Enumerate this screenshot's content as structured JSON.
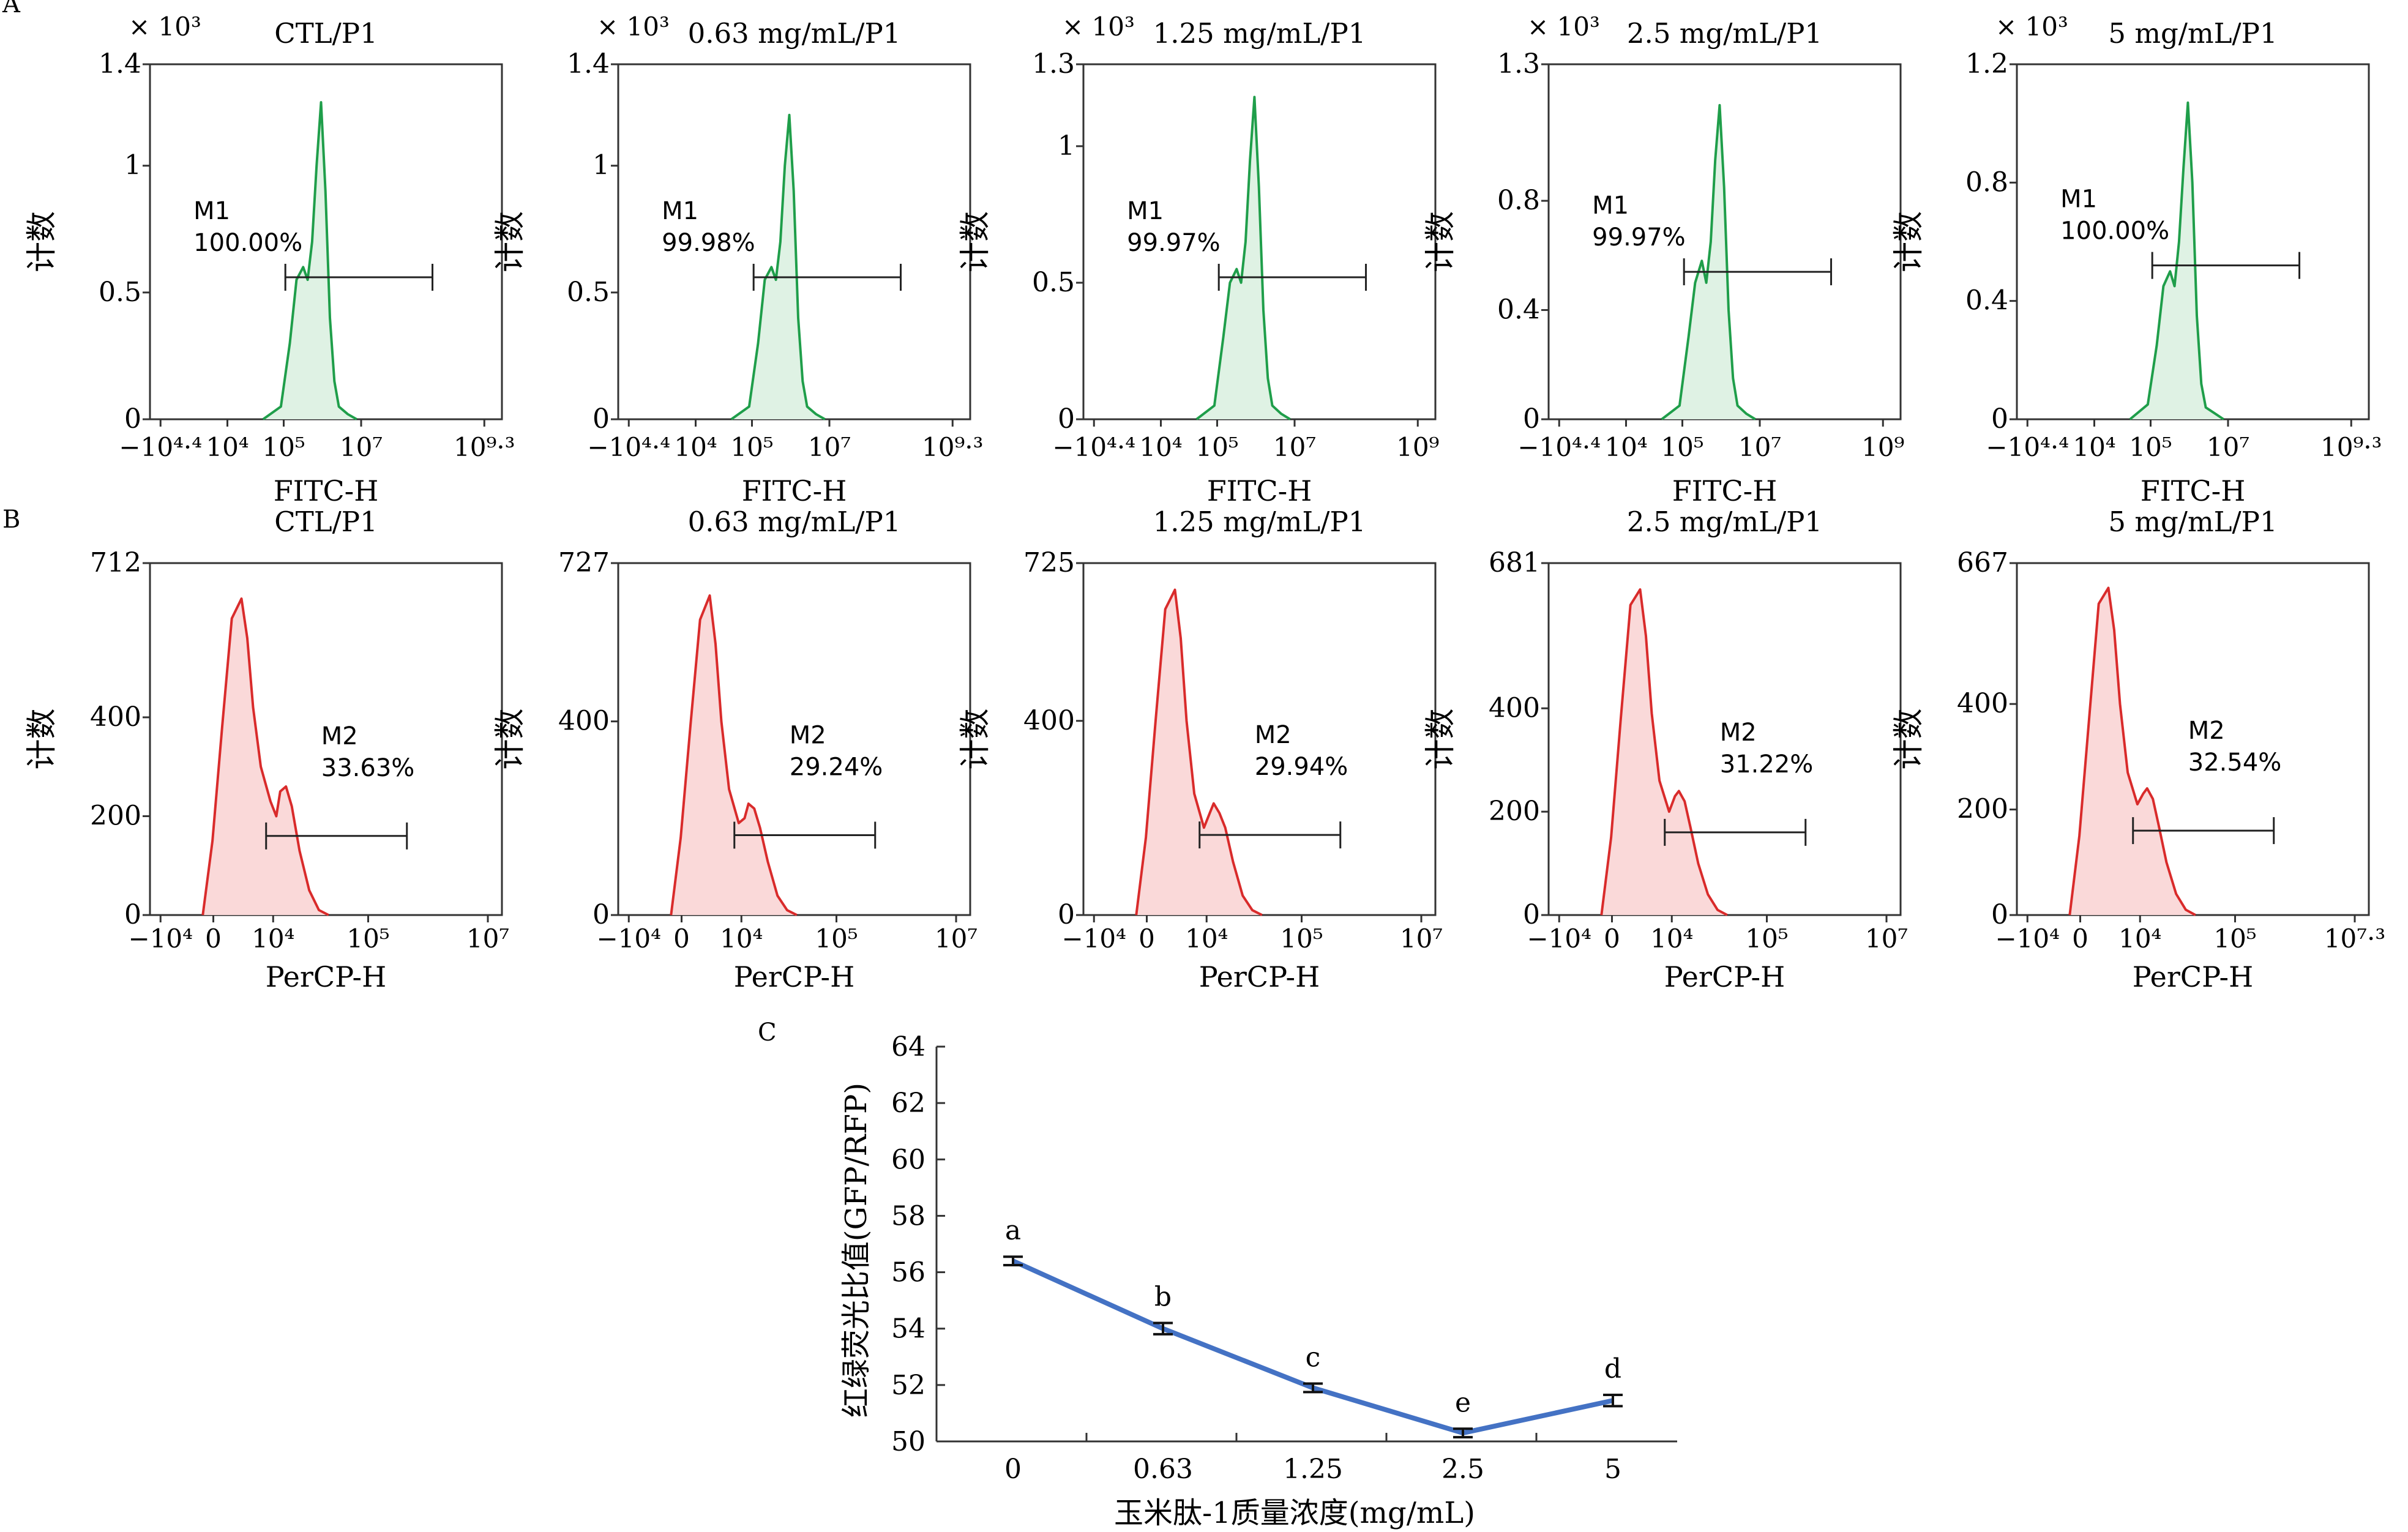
{
  "panel_labels": {
    "A": "A",
    "B": "B",
    "C": "C"
  },
  "colors": {
    "fitc": "#1f9e4a",
    "fitc_fill": "#dff2e4",
    "percp": "#d92b2b",
    "percp_fill": "#fad9d9",
    "line": "#4472c4"
  },
  "chart_data": [
    {
      "type": "area",
      "row": "A",
      "title": "CTL/P1",
      "xlabel": "FITC-H",
      "ylabel": "计数",
      "multiplier": "× 10³",
      "x_ticks": [
        "−10⁴·⁴",
        "10⁴",
        "10⁵",
        "10⁷",
        "10⁹·³"
      ],
      "y_ticks": [
        "0",
        "0.5",
        "1",
        "1.4"
      ],
      "ylim": [
        0,
        1.4
      ],
      "series": [
        {
          "x": [
            4.8,
            5.2,
            5.4,
            5.55,
            5.7,
            5.8,
            5.9,
            6.0,
            6.1,
            6.2,
            6.3,
            6.4,
            6.5,
            6.7,
            6.9
          ],
          "values": [
            0.0,
            0.05,
            0.3,
            0.55,
            0.6,
            0.55,
            0.7,
            1.0,
            1.25,
            0.9,
            0.4,
            0.15,
            0.05,
            0.02,
            0.0
          ]
        }
      ],
      "gate": {
        "label": "M1",
        "percent": "100.00%",
        "from_log": 5.3,
        "to_log": 8.6,
        "level": 0.56
      }
    },
    {
      "type": "area",
      "row": "A",
      "title": "0.63 mg/mL/P1",
      "xlabel": "FITC-H",
      "ylabel": "计数",
      "multiplier": "× 10³",
      "x_ticks": [
        "−10⁴·⁴",
        "10⁴",
        "10⁵",
        "10⁷",
        "10⁹·³"
      ],
      "y_ticks": [
        "0",
        "0.5",
        "1",
        "1.4"
      ],
      "ylim": [
        0,
        1.4
      ],
      "series": [
        {
          "x": [
            4.8,
            5.2,
            5.4,
            5.55,
            5.7,
            5.8,
            5.9,
            6.0,
            6.1,
            6.2,
            6.3,
            6.4,
            6.5,
            6.7,
            6.9
          ],
          "values": [
            0.0,
            0.05,
            0.3,
            0.55,
            0.6,
            0.55,
            0.7,
            1.0,
            1.2,
            0.9,
            0.4,
            0.15,
            0.05,
            0.02,
            0.0
          ]
        }
      ],
      "gate": {
        "label": "M1",
        "percent": "99.98%",
        "from_log": 5.3,
        "to_log": 8.6,
        "level": 0.56
      }
    },
    {
      "type": "area",
      "row": "A",
      "title": "1.25 mg/mL/P1",
      "xlabel": "FITC-H",
      "ylabel": "计数",
      "multiplier": "× 10³",
      "x_ticks": [
        "−10⁴·⁴",
        "10⁴",
        "10⁵",
        "10⁷",
        "10⁹"
      ],
      "y_ticks": [
        "0",
        "0.5",
        "1",
        "1.3"
      ],
      "ylim": [
        0,
        1.3
      ],
      "series": [
        {
          "x": [
            4.8,
            5.2,
            5.4,
            5.55,
            5.7,
            5.8,
            5.9,
            6.0,
            6.1,
            6.2,
            6.3,
            6.4,
            6.5,
            6.7,
            6.9
          ],
          "values": [
            0.0,
            0.05,
            0.3,
            0.5,
            0.55,
            0.5,
            0.65,
            0.95,
            1.18,
            0.85,
            0.4,
            0.15,
            0.05,
            0.02,
            0.0
          ]
        }
      ],
      "gate": {
        "label": "M1",
        "percent": "99.97%",
        "from_log": 5.3,
        "to_log": 8.6,
        "level": 0.52
      }
    },
    {
      "type": "area",
      "row": "A",
      "title": "2.5 mg/mL/P1",
      "xlabel": "FITC-H",
      "ylabel": "计数",
      "multiplier": "× 10³",
      "x_ticks": [
        "−10⁴·⁴",
        "10⁴",
        "10⁵",
        "10⁷",
        "10⁹"
      ],
      "y_ticks": [
        "0",
        "0.4",
        "0.8",
        "1.3"
      ],
      "ylim": [
        0,
        1.3
      ],
      "series": [
        {
          "x": [
            4.8,
            5.2,
            5.4,
            5.55,
            5.7,
            5.8,
            5.9,
            6.0,
            6.1,
            6.2,
            6.3,
            6.4,
            6.5,
            6.7,
            6.9
          ],
          "values": [
            0.0,
            0.05,
            0.3,
            0.5,
            0.58,
            0.5,
            0.65,
            0.95,
            1.15,
            0.85,
            0.4,
            0.15,
            0.05,
            0.02,
            0.0
          ]
        }
      ],
      "gate": {
        "label": "M1",
        "percent": "99.97%",
        "from_log": 5.3,
        "to_log": 8.6,
        "level": 0.54
      }
    },
    {
      "type": "area",
      "row": "A",
      "title": "5 mg/mL/P1",
      "xlabel": "FITC-H",
      "ylabel": "计数",
      "multiplier": "× 10³",
      "x_ticks": [
        "−10⁴·⁴",
        "10⁴",
        "10⁵",
        "10⁷",
        "10⁹·³"
      ],
      "y_ticks": [
        "0",
        "0.4",
        "0.8",
        "1.2"
      ],
      "ylim": [
        0,
        1.2
      ],
      "series": [
        {
          "x": [
            4.8,
            5.2,
            5.4,
            5.55,
            5.7,
            5.8,
            5.9,
            6.0,
            6.1,
            6.2,
            6.3,
            6.4,
            6.5,
            6.7,
            6.9
          ],
          "values": [
            0.0,
            0.05,
            0.25,
            0.45,
            0.5,
            0.45,
            0.6,
            0.85,
            1.07,
            0.8,
            0.35,
            0.12,
            0.04,
            0.02,
            0.0
          ]
        }
      ],
      "gate": {
        "label": "M1",
        "percent": "100.00%",
        "from_log": 5.3,
        "to_log": 8.6,
        "level": 0.52
      }
    },
    {
      "type": "area",
      "row": "B",
      "title": "CTL/P1",
      "xlabel": "PerCP-H",
      "ylabel": "计数",
      "x_ticks": [
        "−10⁴",
        "0",
        "10⁴",
        "10⁵",
        "10⁷"
      ],
      "y_ticks": [
        "0",
        "200",
        "400",
        "712"
      ],
      "ylim": [
        0,
        712
      ],
      "series": [
        {
          "x": [
            0.0,
            0.05,
            0.1,
            0.15,
            0.2,
            0.23,
            0.26,
            0.3,
            0.35,
            0.38,
            0.4,
            0.43,
            0.46,
            0.5,
            0.55,
            0.6,
            0.65
          ],
          "values": [
            0,
            150,
            380,
            600,
            640,
            560,
            420,
            300,
            230,
            200,
            250,
            260,
            220,
            130,
            50,
            10,
            0
          ]
        }
      ],
      "gate": {
        "label": "M2",
        "percent": "33.63%",
        "from_x": 0.33,
        "to_x": 0.73,
        "level": 160
      }
    },
    {
      "type": "area",
      "row": "B",
      "title": "0.63 mg/mL/P1",
      "xlabel": "PerCP-H",
      "ylabel": "计数",
      "x_ticks": [
        "−10⁴",
        "0",
        "10⁴",
        "10⁵",
        "10⁷"
      ],
      "y_ticks": [
        "0",
        "400",
        "727"
      ],
      "ylim": [
        0,
        727
      ],
      "series": [
        {
          "x": [
            0.0,
            0.05,
            0.1,
            0.15,
            0.2,
            0.23,
            0.26,
            0.3,
            0.35,
            0.38,
            0.4,
            0.43,
            0.46,
            0.5,
            0.55,
            0.6,
            0.65
          ],
          "values": [
            0,
            160,
            390,
            610,
            660,
            560,
            400,
            260,
            190,
            200,
            230,
            220,
            180,
            110,
            40,
            10,
            0
          ]
        }
      ],
      "gate": {
        "label": "M2",
        "percent": "29.24%",
        "from_x": 0.33,
        "to_x": 0.73,
        "level": 165
      }
    },
    {
      "type": "area",
      "row": "B",
      "title": "1.25 mg/mL/P1",
      "xlabel": "PerCP-H",
      "ylabel": "计数",
      "x_ticks": [
        "−10⁴",
        "0",
        "10⁴",
        "10⁵",
        "10⁷"
      ],
      "y_ticks": [
        "0",
        "400",
        "725"
      ],
      "ylim": [
        0,
        725
      ],
      "series": [
        {
          "x": [
            0.0,
            0.05,
            0.1,
            0.15,
            0.2,
            0.23,
            0.26,
            0.3,
            0.35,
            0.38,
            0.4,
            0.43,
            0.46,
            0.5,
            0.55,
            0.6,
            0.65
          ],
          "values": [
            0,
            160,
            400,
            630,
            670,
            570,
            400,
            250,
            180,
            210,
            230,
            210,
            180,
            110,
            40,
            10,
            0
          ]
        }
      ],
      "gate": {
        "label": "M2",
        "percent": "29.94%",
        "from_x": 0.33,
        "to_x": 0.73,
        "level": 165
      }
    },
    {
      "type": "area",
      "row": "B",
      "title": "2.5 mg/mL/P1",
      "xlabel": "PerCP-H",
      "ylabel": "计数",
      "x_ticks": [
        "−10⁴",
        "0",
        "10⁴",
        "10⁵",
        "10⁷"
      ],
      "y_ticks": [
        "0",
        "200",
        "400",
        "681"
      ],
      "ylim": [
        0,
        681
      ],
      "series": [
        {
          "x": [
            0.0,
            0.05,
            0.1,
            0.15,
            0.2,
            0.23,
            0.26,
            0.3,
            0.35,
            0.38,
            0.4,
            0.43,
            0.46,
            0.5,
            0.55,
            0.6,
            0.65
          ],
          "values": [
            0,
            150,
            380,
            600,
            630,
            540,
            390,
            260,
            200,
            230,
            240,
            220,
            170,
            100,
            40,
            10,
            0
          ]
        }
      ],
      "gate": {
        "label": "M2",
        "percent": "31.22%",
        "from_x": 0.33,
        "to_x": 0.73,
        "level": 160
      }
    },
    {
      "type": "area",
      "row": "B",
      "title": "5 mg/mL/P1",
      "xlabel": "PerCP-H",
      "ylabel": "计数",
      "x_ticks": [
        "−10⁴",
        "0",
        "10⁴",
        "10⁵",
        "10⁷·³"
      ],
      "y_ticks": [
        "0",
        "200",
        "400",
        "667"
      ],
      "ylim": [
        0,
        667
      ],
      "series": [
        {
          "x": [
            0.0,
            0.05,
            0.1,
            0.15,
            0.2,
            0.23,
            0.26,
            0.3,
            0.35,
            0.38,
            0.4,
            0.43,
            0.46,
            0.5,
            0.55,
            0.6,
            0.65
          ],
          "values": [
            0,
            150,
            370,
            590,
            620,
            540,
            400,
            270,
            210,
            230,
            240,
            220,
            170,
            100,
            40,
            10,
            0
          ]
        }
      ],
      "gate": {
        "label": "M2",
        "percent": "32.54%",
        "from_x": 0.33,
        "to_x": 0.73,
        "level": 160
      }
    },
    {
      "type": "line",
      "row": "C",
      "categories": [
        "0",
        "0.63",
        "1.25",
        "2.5",
        "5"
      ],
      "values": [
        56.4,
        54.0,
        51.9,
        50.3,
        51.45
      ],
      "errors": [
        0.15,
        0.2,
        0.15,
        0.15,
        0.2
      ],
      "letters": [
        "a",
        "b",
        "c",
        "e",
        "d"
      ],
      "ylim": [
        50,
        64
      ],
      "y_ticks": [
        50,
        52,
        54,
        56,
        58,
        60,
        62,
        64
      ],
      "xlabel": "玉米肽-1质量浓度(mg/mL)",
      "ylabel": "红绿荧光比值(GFP/RFP)"
    }
  ]
}
